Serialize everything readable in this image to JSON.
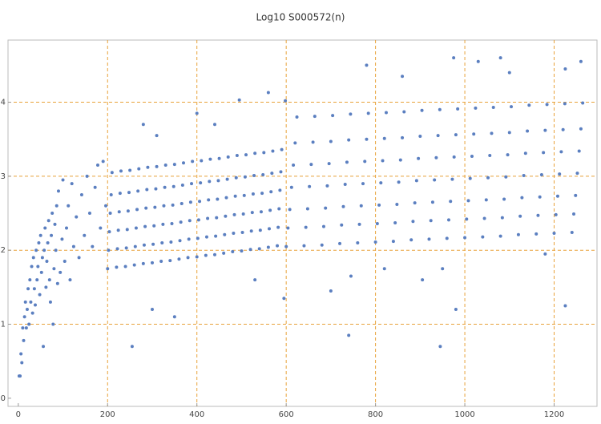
{
  "chart_data": {
    "type": "scatter",
    "title": "Log10 S000572(n)",
    "color": "#5b7fc0",
    "grid": true,
    "grid_color": "#e8a23a",
    "xlim": [
      -23,
      1296
    ],
    "ylim": [
      -0.11,
      4.84
    ],
    "xticks": [
      0,
      200,
      400,
      600,
      800,
      1000,
      1200
    ],
    "yticks": [
      0,
      1,
      2,
      3,
      4
    ],
    "x": [
      2,
      4,
      6,
      8,
      10,
      12,
      14,
      16,
      18,
      20,
      22,
      24,
      26,
      28,
      30,
      32,
      34,
      36,
      38,
      40,
      42,
      44,
      46,
      48,
      50,
      52,
      54,
      56,
      58,
      60,
      62,
      64,
      66,
      68,
      70,
      72,
      74,
      76,
      78,
      80,
      82,
      84,
      86,
      88,
      90,
      94,
      98,
      100,
      104,
      108,
      112,
      116,
      120,
      124,
      130,
      136,
      142,
      148,
      154,
      160,
      166,
      172,
      178,
      184,
      190,
      196,
      200,
      202,
      204,
      206,
      208,
      210,
      220,
      222,
      224,
      226,
      228,
      230,
      240,
      242,
      244,
      246,
      248,
      250,
      260,
      262,
      264,
      266,
      268,
      270,
      280,
      282,
      284,
      286,
      288,
      290,
      300,
      302,
      304,
      306,
      308,
      310,
      320,
      322,
      324,
      326,
      328,
      330,
      340,
      342,
      344,
      346,
      348,
      350,
      360,
      362,
      364,
      366,
      368,
      370,
      380,
      382,
      384,
      386,
      388,
      390,
      400,
      402,
      404,
      406,
      408,
      410,
      420,
      422,
      424,
      426,
      428,
      430,
      440,
      442,
      444,
      446,
      448,
      450,
      460,
      462,
      464,
      466,
      468,
      470,
      480,
      482,
      484,
      486,
      488,
      490,
      500,
      502,
      504,
      506,
      508,
      510,
      520,
      522,
      524,
      526,
      528,
      530,
      540,
      542,
      544,
      546,
      548,
      550,
      560,
      562,
      564,
      566,
      568,
      570,
      580,
      582,
      584,
      586,
      588,
      590,
      600,
      604,
      608,
      612,
      616,
      620,
      624,
      640,
      644,
      648,
      652,
      656,
      660,
      664,
      680,
      684,
      688,
      692,
      696,
      700,
      704,
      720,
      724,
      728,
      732,
      736,
      740,
      744,
      760,
      764,
      768,
      772,
      776,
      780,
      784,
      800,
      804,
      808,
      812,
      816,
      820,
      824,
      840,
      844,
      848,
      852,
      856,
      860,
      864,
      880,
      884,
      888,
      892,
      896,
      900,
      904,
      920,
      924,
      928,
      932,
      936,
      940,
      944,
      960,
      964,
      968,
      972,
      976,
      980,
      984,
      1000,
      1004,
      1008,
      1012,
      1016,
      1020,
      1024,
      1040,
      1044,
      1048,
      1052,
      1056,
      1060,
      1064,
      1080,
      1084,
      1088,
      1092,
      1096,
      1100,
      1104,
      1120,
      1124,
      1128,
      1132,
      1136,
      1140,
      1144,
      1160,
      1164,
      1168,
      1172,
      1176,
      1180,
      1184,
      1200,
      1204,
      1208,
      1212,
      1216,
      1220,
      1224,
      1240,
      1244,
      1248,
      1252,
      1256,
      1260,
      1264,
      255,
      280,
      300,
      310,
      350,
      400,
      440,
      495,
      530,
      560,
      595,
      598,
      700,
      740,
      745,
      780,
      820,
      860,
      905,
      945,
      950,
      975,
      980,
      1030,
      1080,
      1100,
      1180,
      1225,
      1225,
      1260
    ],
    "values": [
      0.3,
      0.3,
      0.6,
      0.48,
      0.95,
      0.78,
      1.1,
      1.3,
      0.95,
      1.2,
      1.48,
      1.0,
      1.6,
      1.3,
      1.78,
      1.15,
      1.9,
      1.48,
      1.26,
      2.0,
      1.6,
      1.78,
      2.1,
      1.4,
      2.2,
      1.7,
      1.9,
      0.7,
      2.0,
      2.3,
      1.5,
      1.85,
      2.1,
      2.4,
      1.6,
      1.3,
      2.2,
      2.5,
      1.0,
      1.75,
      2.35,
      2.0,
      2.6,
      1.55,
      2.8,
      1.7,
      2.15,
      2.95,
      1.85,
      2.3,
      2.6,
      1.6,
      2.9,
      2.05,
      2.45,
      1.9,
      2.75,
      2.2,
      3.0,
      2.5,
      2.05,
      2.85,
      3.15,
      2.3,
      3.2,
      2.6,
      1.75,
      2,
      2.25,
      2.5,
      2.75,
      3.05,
      1.77,
      2.02,
      2.27,
      2.52,
      2.77,
      3.07,
      1.78,
      2.03,
      2.28,
      2.53,
      2.78,
      3.08,
      1.8,
      2.05,
      2.3,
      2.55,
      2.8,
      3.1,
      1.82,
      2.07,
      2.32,
      2.57,
      2.82,
      3.12,
      1.83,
      2.08,
      2.33,
      2.58,
      2.83,
      3.13,
      1.85,
      2.1,
      2.35,
      2.6,
      2.85,
      3.15,
      1.86,
      2.11,
      2.36,
      2.61,
      2.86,
      3.16,
      1.88,
      2.13,
      2.38,
      2.63,
      2.88,
      3.18,
      1.9,
      2.15,
      2.4,
      2.65,
      2.9,
      3.2,
      1.91,
      2.16,
      2.41,
      2.66,
      2.91,
      3.21,
      1.93,
      2.18,
      2.43,
      2.68,
      2.93,
      3.23,
      1.94,
      2.19,
      2.44,
      2.69,
      2.94,
      3.24,
      1.96,
      2.21,
      2.46,
      2.71,
      2.96,
      3.26,
      1.98,
      2.23,
      2.48,
      2.73,
      2.98,
      3.28,
      1.99,
      2.24,
      2.49,
      2.74,
      2.99,
      3.29,
      2.01,
      2.26,
      2.51,
      2.76,
      3.01,
      3.31,
      2.02,
      2.27,
      2.52,
      2.77,
      3.02,
      3.32,
      2.04,
      2.29,
      2.54,
      2.79,
      3.04,
      3.34,
      2.06,
      2.31,
      2.56,
      2.81,
      3.06,
      3.36,
      2.05,
      2.3,
      2.55,
      2.85,
      3.15,
      3.45,
      3.8,
      2.06,
      2.31,
      2.56,
      2.86,
      3.16,
      3.46,
      3.81,
      2.07,
      2.32,
      2.57,
      2.87,
      3.17,
      3.47,
      3.82,
      2.09,
      2.34,
      2.59,
      2.89,
      3.19,
      3.49,
      3.84,
      2.1,
      2.35,
      2.6,
      2.9,
      3.2,
      3.5,
      3.85,
      2.11,
      2.36,
      2.61,
      2.91,
      3.21,
      3.51,
      3.86,
      2.12,
      2.37,
      2.62,
      2.92,
      3.22,
      3.52,
      3.87,
      2.14,
      2.39,
      2.64,
      2.94,
      3.24,
      3.54,
      3.89,
      2.15,
      2.4,
      2.65,
      2.95,
      3.25,
      3.55,
      3.9,
      2.16,
      2.41,
      2.66,
      2.96,
      3.26,
      3.56,
      3.91,
      2.17,
      2.42,
      2.67,
      2.97,
      3.27,
      3.57,
      3.92,
      2.18,
      2.43,
      2.68,
      2.98,
      3.28,
      3.58,
      3.93,
      2.19,
      2.44,
      2.69,
      2.99,
      3.29,
      3.59,
      3.94,
      2.21,
      2.46,
      2.71,
      3.01,
      3.31,
      3.61,
      3.96,
      2.22,
      2.47,
      2.72,
      3.02,
      3.32,
      3.62,
      3.97,
      2.23,
      2.48,
      2.73,
      3.03,
      3.33,
      3.63,
      3.98,
      2.24,
      2.49,
      2.74,
      3.04,
      3.34,
      3.64,
      3.99,
      0.7,
      3.7,
      1.2,
      3.55,
      1.1,
      3.85,
      3.7,
      4.03,
      1.6,
      4.13,
      1.35,
      4.02,
      1.45,
      0.85,
      1.65,
      4.5,
      1.75,
      4.35,
      1.6,
      0.7,
      1.75,
      4.6,
      1.2,
      4.55,
      4.6,
      4.4,
      1.95,
      1.25,
      4.45,
      4.55
    ]
  }
}
